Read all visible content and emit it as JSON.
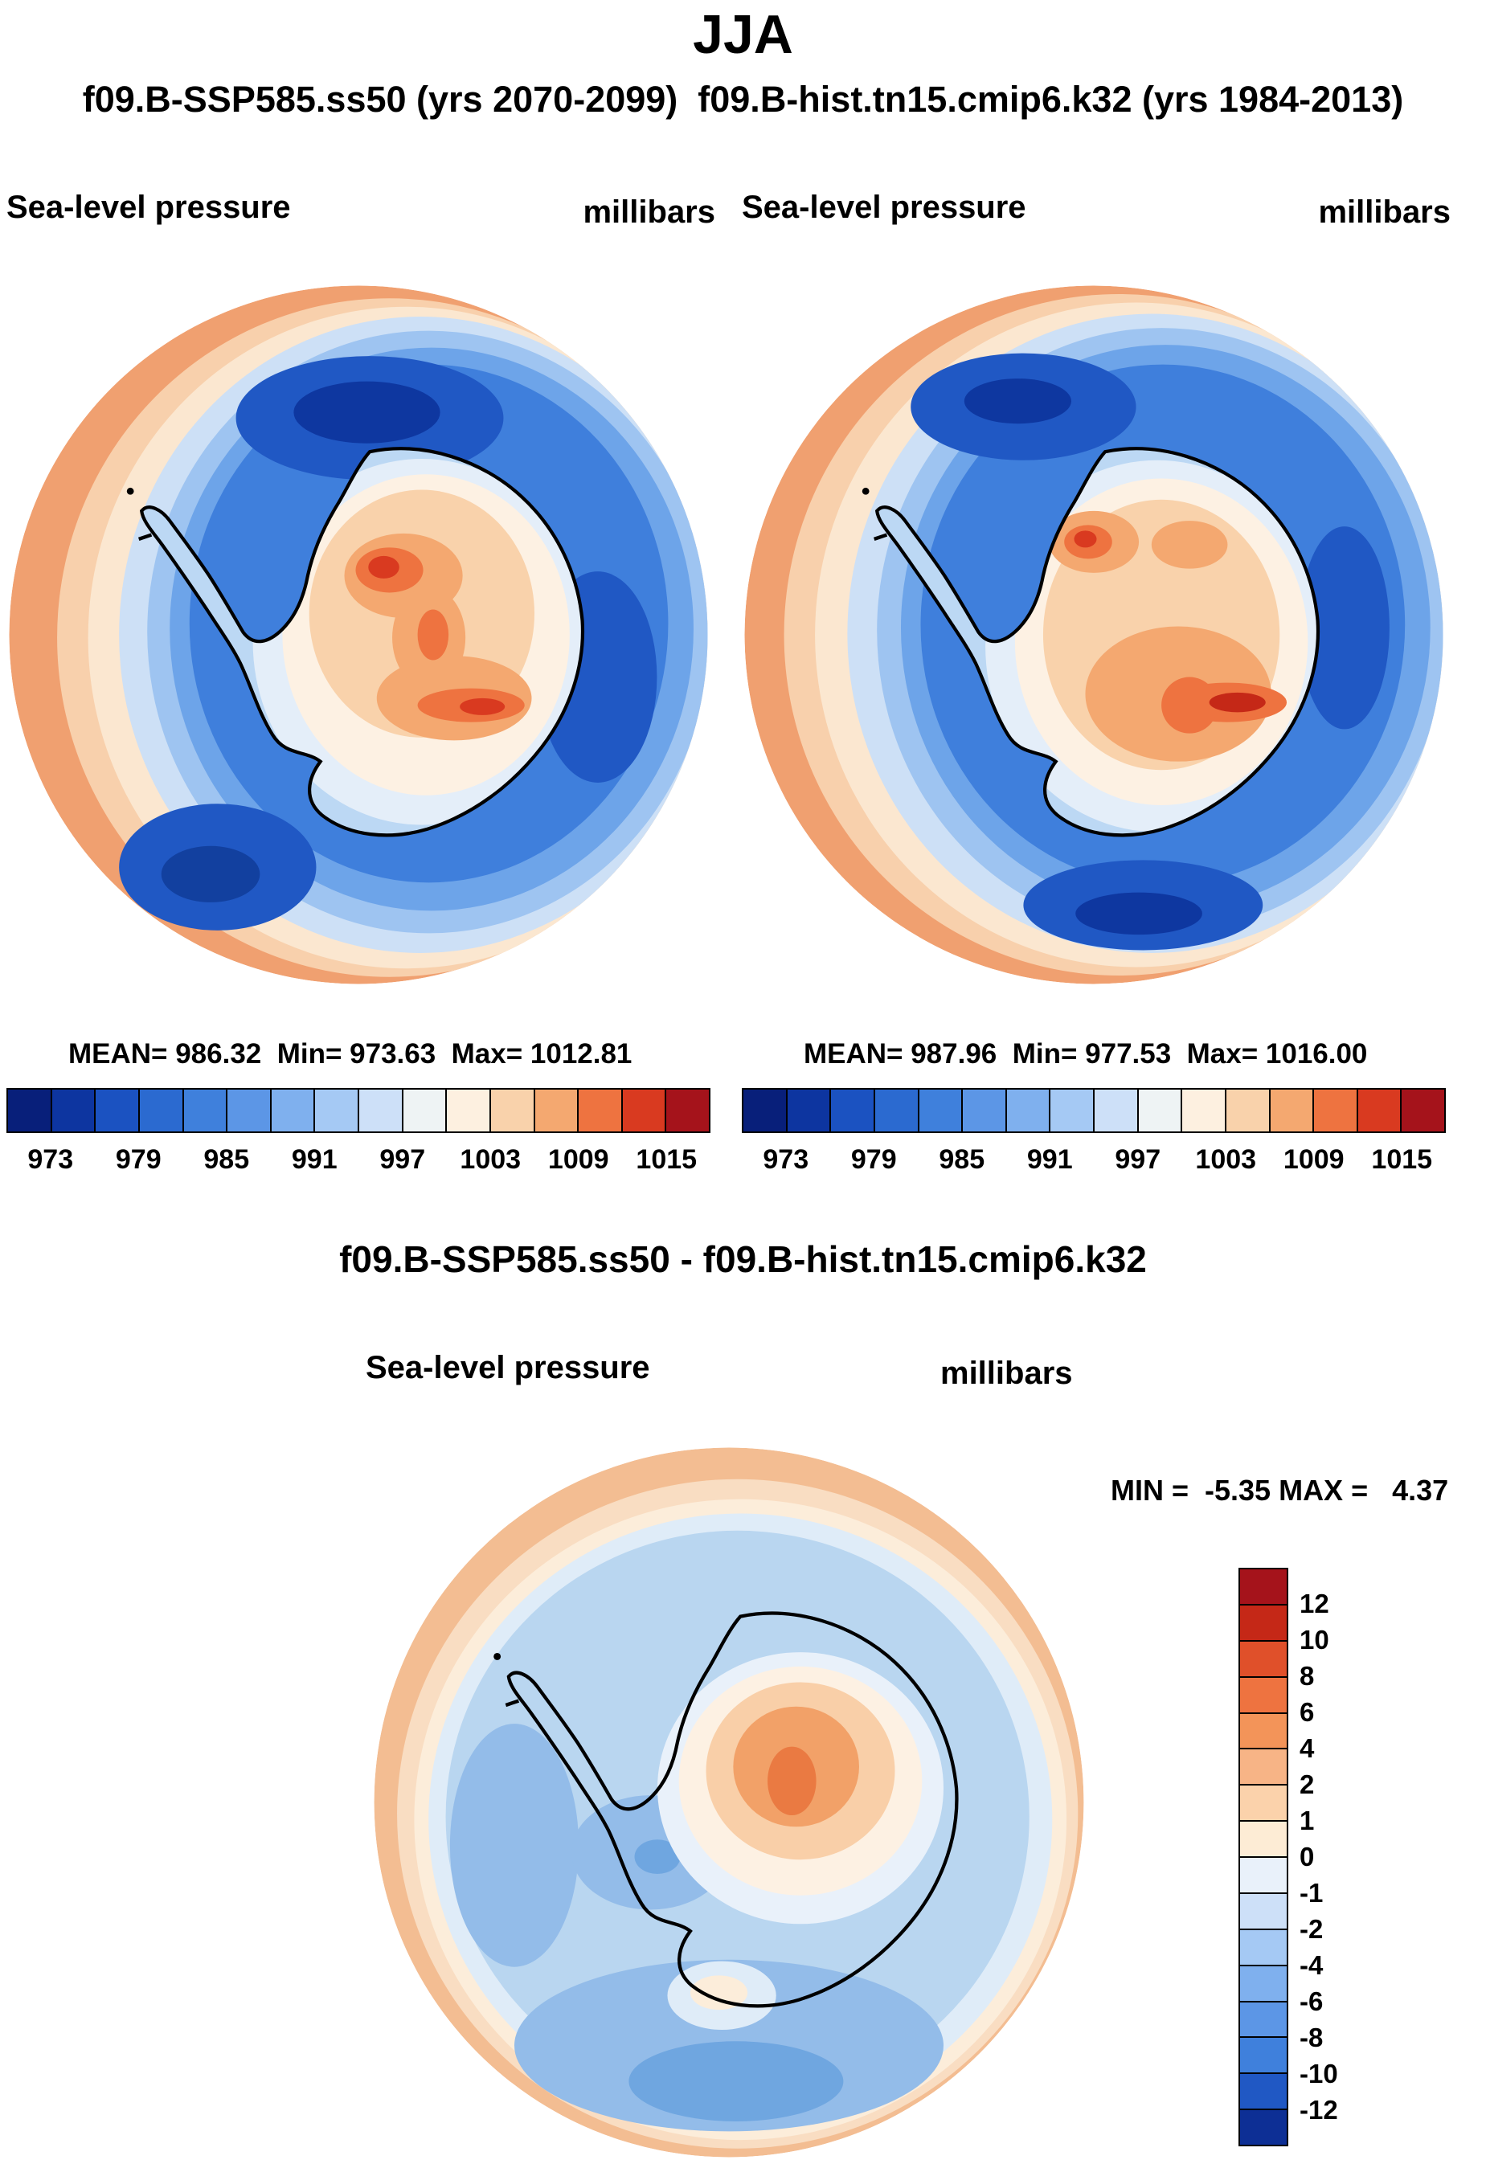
{
  "title": "JJA",
  "subtitle": "f09.B-SSP585.ss50 (yrs 2070-2099)  f09.B-hist.tn15.cmip6.k32 (yrs 1984-2013)",
  "top_panels": [
    {
      "run_name": "f09.B-SSP585.ss50 (yrs 2070-2099)",
      "field_label": "Sea-level pressure",
      "units_label": "millibars",
      "stats": "MEAN= 986.32  Min= 973.63  Max= 1012.81"
    },
    {
      "run_name": "f09.B-hist.tn15.cmip6.k32 (yrs 1984-2013)",
      "field_label": "Sea-level pressure",
      "units_label": "millibars",
      "stats": "MEAN= 987.96  Min= 977.53  Max= 1016.00"
    }
  ],
  "pressure_colorbar": {
    "colors": [
      "#081f7a",
      "#0d35a0",
      "#1b52c1",
      "#2b6ad0",
      "#3f80dc",
      "#5c96e6",
      "#7fb0ee",
      "#a5c9f4",
      "#cde0f8",
      "#eef3f4",
      "#fdf0e0",
      "#f9d2ab",
      "#f4a870",
      "#ee7340",
      "#d93a20",
      "#a5131b"
    ],
    "tick_labels": [
      "973",
      "979",
      "985",
      "991",
      "997",
      "1003",
      "1009",
      "1015"
    ]
  },
  "diff_panel": {
    "title": "f09.B-SSP585.ss50 - f09.B-hist.tn15.cmip6.k32",
    "field_label": "Sea-level pressure",
    "units_label": "millibars",
    "minmax": "MIN =  -5.35 MAX =   4.37",
    "colorbar": {
      "colors": [
        "#a5131b",
        "#c52817",
        "#e0502a",
        "#ee7340",
        "#f39459",
        "#f7b486",
        "#fbd2ab",
        "#fdecd5",
        "#e9f1fa",
        "#cde0f8",
        "#a5c9f4",
        "#7fb0ee",
        "#5c96e6",
        "#3f80dc",
        "#2058c4",
        "#0d2f95"
      ],
      "labels": [
        "12",
        "10",
        "8",
        "6",
        "4",
        "2",
        "1",
        "0",
        "-1",
        "-2",
        "-4",
        "-6",
        "-8",
        "-10",
        "-12"
      ]
    }
  },
  "chart_data": [
    {
      "type": "heatmap",
      "subtype": "filled-contour polar stereographic map",
      "panel": "top-left",
      "title": "f09.B-SSP585.ss50 (yrs 2070-2099)",
      "season": "JJA",
      "variable": "Sea-level pressure",
      "units": "millibars",
      "region": "Antarctica / Southern Ocean (south polar view)",
      "stats": {
        "mean": 986.32,
        "min": 973.63,
        "max": 1012.81
      },
      "contour_levels": [
        973,
        976,
        979,
        982,
        985,
        988,
        991,
        994,
        997,
        1000,
        1003,
        1006,
        1009,
        1012,
        1015
      ],
      "colorbar_ticks": [
        973,
        979,
        985,
        991,
        997,
        1003,
        1009,
        1015
      ],
      "colormap": "blue-cream-red; deep blue circumpolar low-pressure trough around coast, orange/red high over East Antarctic interior, peach rim at low latitudes",
      "legend_position": "bottom"
    },
    {
      "type": "heatmap",
      "subtype": "filled-contour polar stereographic map",
      "panel": "top-right",
      "title": "f09.B-hist.tn15.cmip6.k32 (yrs 1984-2013)",
      "season": "JJA",
      "variable": "Sea-level pressure",
      "units": "millibars",
      "region": "Antarctica / Southern Ocean (south polar view)",
      "stats": {
        "mean": 987.96,
        "min": 977.53,
        "max": 1016.0
      },
      "contour_levels": [
        973,
        976,
        979,
        982,
        985,
        988,
        991,
        994,
        997,
        1000,
        1003,
        1006,
        1009,
        1012,
        1015
      ],
      "colorbar_ticks": [
        973,
        979,
        985,
        991,
        997,
        1003,
        1009,
        1015
      ],
      "colormap": "blue-cream-red; deep blue circumpolar low-pressure trough around coast, stronger orange/dark-red high over East Antarctic interior",
      "legend_position": "bottom"
    },
    {
      "type": "heatmap",
      "subtype": "filled-contour polar stereographic difference map",
      "panel": "bottom",
      "title": "f09.B-SSP585.ss50 - f09.B-hist.tn15.cmip6.k32",
      "season": "JJA",
      "variable": "Sea-level pressure difference",
      "units": "millibars",
      "region": "Antarctica / Southern Ocean (south polar view)",
      "stats": {
        "min": -5.35,
        "max": 4.37
      },
      "contour_levels": [
        -12,
        -10,
        -8,
        -6,
        -4,
        -2,
        -1,
        0,
        1,
        2,
        4,
        6,
        8,
        10,
        12
      ],
      "colormap": "mostly light blue (negative) with orange positive anomaly over central East Antarctica and peach rim at map edge",
      "legend_position": "right"
    }
  ]
}
